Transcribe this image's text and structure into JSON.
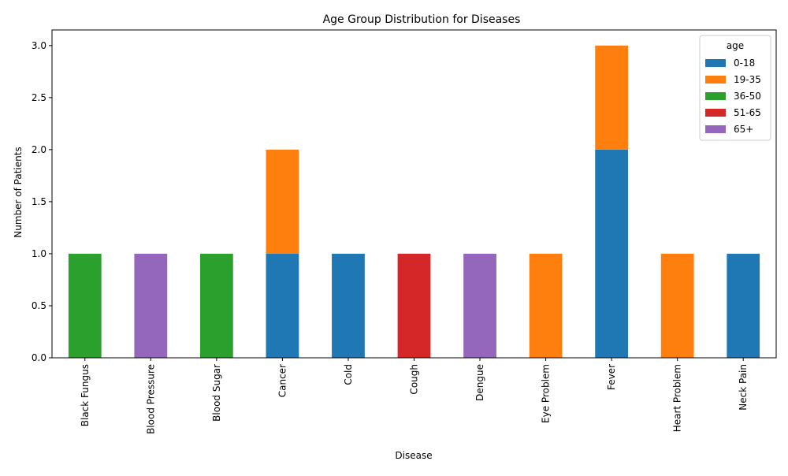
{
  "chart_data": {
    "type": "bar",
    "stacked": true,
    "title": "Age Group Distribution for Diseases",
    "xlabel": "Disease",
    "ylabel": "Number of Patients",
    "ylim": [
      0,
      3.15
    ],
    "yticks": [
      "0.0",
      "0.5",
      "1.0",
      "1.5",
      "2.0",
      "2.5",
      "3.0"
    ],
    "ytick_values": [
      0,
      0.5,
      1.0,
      1.5,
      2.0,
      2.5,
      3.0
    ],
    "grid": false,
    "legend_title": "age",
    "legend_position": "top-right",
    "categories": [
      "Black Fungus",
      "Blood Pressure",
      "Blood Sugar",
      "Cancer",
      "Cold",
      "Cough",
      "Dengue",
      "Eye Problem",
      "Fever",
      "Heart Problem",
      "Neck Pain"
    ],
    "series": [
      {
        "name": "0-18",
        "color": "#1f77b4",
        "values": [
          0,
          0,
          0,
          1,
          1,
          0,
          0,
          0,
          2,
          0,
          1
        ]
      },
      {
        "name": "19-35",
        "color": "#ff7f0e",
        "values": [
          0,
          0,
          0,
          1,
          0,
          0,
          0,
          1,
          1,
          1,
          0
        ]
      },
      {
        "name": "36-50",
        "color": "#2ca02c",
        "values": [
          1,
          0,
          1,
          0,
          0,
          0,
          0,
          0,
          0,
          0,
          0
        ]
      },
      {
        "name": "51-65",
        "color": "#d62728",
        "values": [
          0,
          0,
          0,
          0,
          0,
          1,
          0,
          0,
          0,
          0,
          0
        ]
      },
      {
        "name": "65+",
        "color": "#9467bd",
        "values": [
          0,
          1,
          0,
          0,
          0,
          0,
          1,
          0,
          0,
          0,
          0
        ]
      }
    ]
  }
}
